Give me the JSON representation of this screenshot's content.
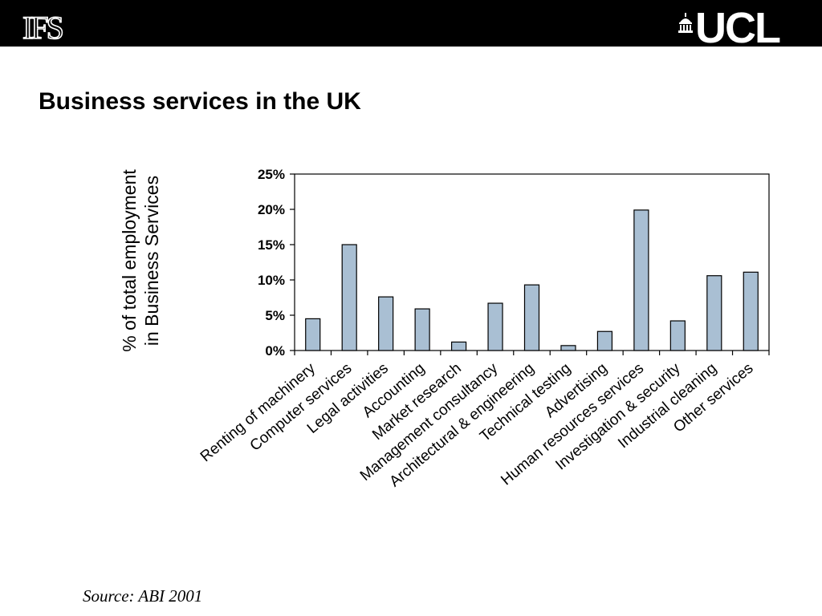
{
  "header": {
    "left_logo_text": "IFS",
    "right_logo_text": "UCL"
  },
  "slide": {
    "title": "Business services in the UK",
    "source": "Source: ABI 2001"
  },
  "colors": {
    "bar_fill": "#a9bfd3",
    "bar_stroke": "#000000",
    "header_bg": "#000000"
  },
  "chart_data": {
    "type": "bar",
    "categories": [
      "Renting of machinery",
      "Computer services",
      "Legal activities",
      "Accounting",
      "Market research",
      "Management consultancy",
      "Architectural & engineering",
      "Technical testing",
      "Advertising",
      "Human resources services",
      "Investigation & security",
      "Industrial cleaning",
      "Other services"
    ],
    "values": [
      4.5,
      15.0,
      7.6,
      5.9,
      1.2,
      6.7,
      9.3,
      0.7,
      2.7,
      19.9,
      4.2,
      10.6,
      11.1
    ],
    "ylabel_lines": [
      "% of total employment",
      "in Business Services"
    ],
    "y_ticks": [
      "0%",
      "5%",
      "10%",
      "15%",
      "20%",
      "25%"
    ],
    "ylim": [
      0,
      25
    ],
    "grid": false,
    "legend": "none"
  }
}
